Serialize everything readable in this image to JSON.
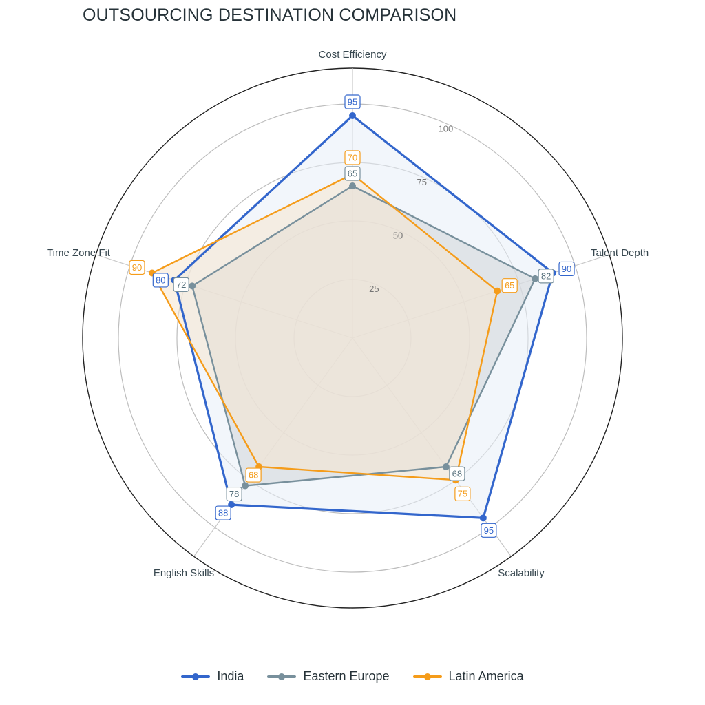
{
  "chart_data": {
    "type": "radar",
    "title": "OUTSOURCING DESTINATION COMPARISON",
    "axes": [
      "Cost Efficiency",
      "Talent Depth",
      "Scalability",
      "English Skills",
      "Time Zone Fit"
    ],
    "radial_range": [
      0,
      100
    ],
    "radial_ticks": [
      25,
      50,
      75,
      100
    ],
    "grid": true,
    "legend_position": "bottom",
    "series": [
      {
        "name": "India",
        "values": [
          95,
          90,
          95,
          88,
          80
        ],
        "color": "#3366cc",
        "fill": "#e8eef8"
      },
      {
        "name": "Eastern Europe",
        "values": [
          65,
          82,
          68,
          78,
          72
        ],
        "color": "#78909c",
        "fill": "#d2d6d8"
      },
      {
        "name": "Latin America",
        "values": [
          70,
          65,
          75,
          68,
          90
        ],
        "color": "#f59c1a",
        "fill": "#f6e6d0"
      }
    ]
  }
}
